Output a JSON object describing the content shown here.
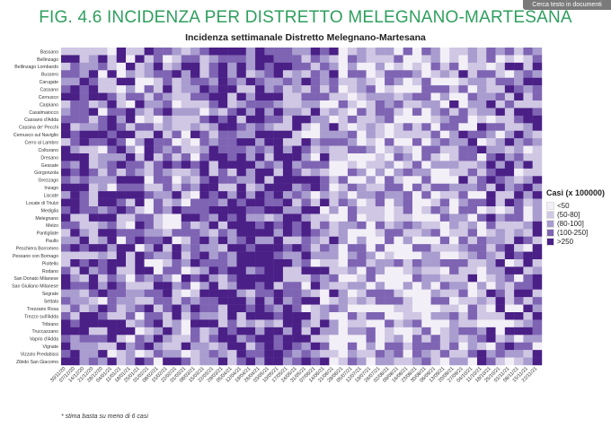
{
  "toolbar": {
    "copy_text_label": "Cerca testo in documenti"
  },
  "page": {
    "title": "FIG. 4.6 INCIDENZA PER DISTRETTO MELEGNANO-MARTESANA",
    "footnote": "* stima basta su meno di 6 casi"
  },
  "legend": {
    "title": "Casi (x 100000)",
    "items": [
      {
        "label": "<50",
        "color": "#f2eff7"
      },
      {
        "label": "(50-80]",
        "color": "#cfc7e3"
      },
      {
        "label": "(80-100]",
        "color": "#a99ccf"
      },
      {
        "label": "(100-250]",
        "color": "#7e64b3"
      },
      {
        "label": ">250",
        "color": "#4a1f86"
      }
    ]
  },
  "chart_data": {
    "type": "heatmap",
    "title": "Incidenza settimanale Distretto Melegnano-Martesana",
    "xlabel": "",
    "ylabel": "",
    "legend_title": "Casi (x 100000)",
    "legend_position": "right",
    "rows": [
      "Bassano",
      "Bellinzago",
      "Bellinzago Lombardo",
      "Bussero",
      "Carugate",
      "Cassano",
      "Cernusco",
      "Carpiano",
      "Casalmaiocco",
      "Cassano d'Adda",
      "Cassina de' Pecchi",
      "Cernusco sul Naviglio",
      "Cerro al Lambro",
      "Colturano",
      "Dresano",
      "Gessate",
      "Gorgonzola",
      "Grezzago",
      "Inzago",
      "Liscate",
      "Locate di Triulzi",
      "Mediglia",
      "Melegnano",
      "Melzo",
      "Pantigliate",
      "Paullo",
      "Peschiera Borromeo",
      "Pessano con Bornago",
      "Pioltello",
      "Rodano",
      "San Donato Milanese",
      "San Giuliano Milanese",
      "Segrate",
      "Settala",
      "Trezzano Rosa",
      "Trezzo sull'Adda",
      "Tribiano",
      "Truccazzano",
      "Vaprio d'Adda",
      "Vignate",
      "Vizzolo Predabissi",
      "Zibido San Giacomo"
    ],
    "columns": [
      "30/11/20",
      "07/12/20",
      "14/12/20",
      "21/12/20",
      "28/12/20",
      "04/01/21",
      "11/01/21",
      "18/01/21",
      "25/01/21",
      "01/02/21",
      "08/02/21",
      "15/02/21",
      "22/02/21",
      "01/03/21",
      "08/03/21",
      "15/03/21",
      "22/03/21",
      "29/03/21",
      "05/04/21",
      "12/04/21",
      "19/04/21",
      "26/04/21",
      "03/05/21",
      "10/05/21",
      "17/05/21",
      "24/05/21",
      "31/05/21",
      "07/06/21",
      "14/06/21",
      "21/06/21",
      "28/06/21",
      "05/07/21",
      "12/07/21",
      "19/07/21",
      "26/07/21",
      "02/08/21",
      "09/08/21",
      "16/08/21",
      "23/08/21",
      "30/08/21",
      "06/09/21",
      "13/09/21",
      "20/09/21",
      "27/09/21",
      "04/10/21",
      "11/10/21",
      "18/10/21",
      "25/10/21",
      "01/11/21",
      "08/11/21",
      "15/11/21",
      "22/11/21"
    ],
    "bins": [
      "<50",
      "(50-80]",
      "(80-100]",
      "(100-250]",
      ">250"
    ]
  }
}
